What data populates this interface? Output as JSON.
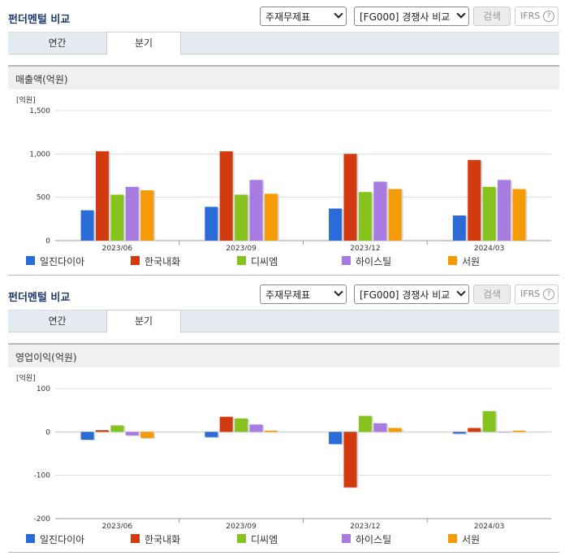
{
  "sections": [
    {
      "header": {
        "title": "펀더멘털 비교",
        "select_statement": "주재무제표",
        "select_compare": "[FG000] 경쟁사 비교",
        "search_label": "검색",
        "ifrs_label": "IFRS",
        "help_label": "?"
      },
      "tabs": [
        {
          "label": "연간",
          "active": false
        },
        {
          "label": "분기",
          "active": true
        }
      ],
      "chart_title": "매출액(억원)",
      "chart_data": {
        "type": "bar",
        "unit_label": "[억원]",
        "categories": [
          "2023/06",
          "2023/09",
          "2023/12",
          "2024/03"
        ],
        "ylim": [
          0,
          1500
        ],
        "yticks": [
          0,
          500,
          1000,
          1500
        ],
        "ytick_labels": [
          "0",
          "500",
          "1,000",
          "1,500"
        ],
        "series": [
          {
            "name": "일진다이아",
            "color": "#2b6bd8",
            "values": [
              350,
              390,
              370,
              290
            ]
          },
          {
            "name": "한국내화",
            "color": "#d23a0f",
            "values": [
              1030,
              1030,
              1000,
              930
            ]
          },
          {
            "name": "디씨엠",
            "color": "#86c31e",
            "values": [
              530,
              530,
              560,
              620
            ]
          },
          {
            "name": "하이스틸",
            "color": "#a87be0",
            "values": [
              620,
              700,
              680,
              700
            ]
          },
          {
            "name": "서원",
            "color": "#f49b06",
            "values": [
              580,
              540,
              595,
              595
            ]
          }
        ]
      }
    },
    {
      "header": {
        "title": "펀더멘털 비교",
        "select_statement": "주재무제표",
        "select_compare": "[FG000] 경쟁사 비교",
        "search_label": "검색",
        "ifrs_label": "IFRS",
        "help_label": "?"
      },
      "tabs": [
        {
          "label": "연간",
          "active": false
        },
        {
          "label": "분기",
          "active": true
        }
      ],
      "chart_title": "영업이익(억원)",
      "chart_data": {
        "type": "bar",
        "unit_label": "[억원]",
        "categories": [
          "2023/06",
          "2023/09",
          "2023/12",
          "2024/03"
        ],
        "ylim": [
          -200,
          100
        ],
        "yticks": [
          -200,
          -100,
          0,
          100
        ],
        "ytick_labels": [
          "-200",
          "-100",
          "0",
          "100"
        ],
        "series": [
          {
            "name": "일진다이아",
            "color": "#2b6bd8",
            "values": [
              -18,
              -12,
              -28,
              -4
            ]
          },
          {
            "name": "한국내화",
            "color": "#d23a0f",
            "values": [
              4,
              35,
              -128,
              9
            ]
          },
          {
            "name": "디씨엠",
            "color": "#86c31e",
            "values": [
              15,
              31,
              37,
              48
            ]
          },
          {
            "name": "하이스틸",
            "color": "#a87be0",
            "values": [
              -8,
              17,
              20,
              0
            ]
          },
          {
            "name": "서원",
            "color": "#f49b06",
            "values": [
              -14,
              3,
              9,
              3
            ]
          }
        ]
      }
    }
  ]
}
